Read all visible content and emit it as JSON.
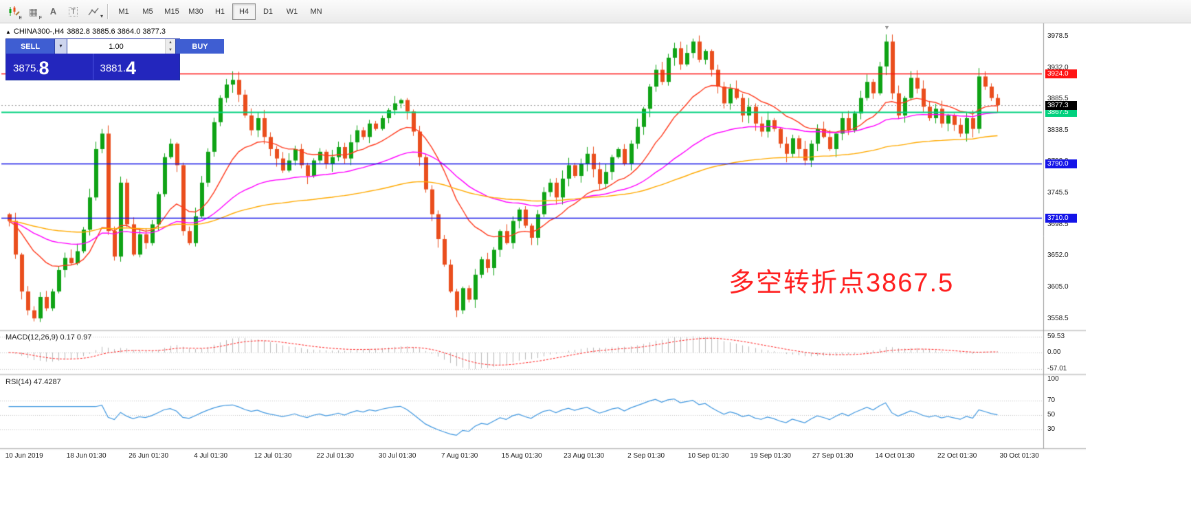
{
  "toolbar": {
    "icons": [
      {
        "name": "candlestick-chart-icon",
        "sub": "E"
      },
      {
        "name": "grid-icon",
        "glyph": "▦",
        "sub": "F"
      },
      {
        "name": "text-letter-icon",
        "glyph": "A"
      },
      {
        "name": "text-box-icon",
        "glyph": "T"
      },
      {
        "name": "line-studies-icon",
        "caret": "▾"
      }
    ],
    "timeframes": [
      "M1",
      "M5",
      "M15",
      "M30",
      "H1",
      "H4",
      "D1",
      "W1",
      "MN"
    ],
    "active_timeframe": "H4"
  },
  "chart_header": {
    "arrow_icon": "▲",
    "symbol": "CHINA300-,H4",
    "ohlc": "3882.8 3885.6 3864.0 3877.3"
  },
  "trade_panel": {
    "sell_label": "SELL",
    "buy_label": "BUY",
    "volume": "1.00",
    "caret_icon": "▼",
    "spin_up": "▲",
    "spin_down": "▼",
    "sell_price_main": "3875.",
    "sell_price_big": "8",
    "buy_price_main": "3881.",
    "buy_price_big": "4"
  },
  "chart_data": {
    "type": "candlestick",
    "symbol": "CHINA300-",
    "timeframe": "H4",
    "shift_marker_icon": "▼",
    "y_range": [
      3545,
      3995
    ],
    "y_ticks": [
      "3978.5",
      "3932.0",
      "3885.5",
      "3838.5",
      "3792.0",
      "3745.5",
      "3698.5",
      "3652.0",
      "3605.0",
      "3558.5"
    ],
    "x_labels": [
      "10 Jun 2019",
      "18 Jun 01:30",
      "26 Jun 01:30",
      "4 Jul 01:30",
      "12 Jul 01:30",
      "22 Jul 01:30",
      "30 Jul 01:30",
      "7 Aug 01:30",
      "15 Aug 01:30",
      "23 Aug 01:30",
      "2 Sep 01:30",
      "10 Sep 01:30",
      "19 Sep 01:30",
      "27 Sep 01:30",
      "14 Oct 01:30",
      "22 Oct 01:30",
      "30 Oct 01:30"
    ],
    "closes": [
      3705,
      3655,
      3600,
      3572,
      3560,
      3592,
      3575,
      3600,
      3632,
      3650,
      3642,
      3660,
      3692,
      3740,
      3812,
      3835,
      3690,
      3652,
      3762,
      3700,
      3655,
      3685,
      3672,
      3700,
      3745,
      3800,
      3820,
      3788,
      3690,
      3672,
      3712,
      3762,
      3808,
      3852,
      3888,
      3908,
      3915,
      3893,
      3862,
      3840,
      3858,
      3830,
      3812,
      3798,
      3780,
      3795,
      3812,
      3788,
      3772,
      3795,
      3808,
      3790,
      3800,
      3815,
      3798,
      3822,
      3840,
      3830,
      3850,
      3842,
      3858,
      3870,
      3880,
      3885,
      3868,
      3838,
      3800,
      3752,
      3715,
      3678,
      3640,
      3600,
      3572,
      3605,
      3588,
      3625,
      3648,
      3635,
      3662,
      3690,
      3672,
      3705,
      3722,
      3698,
      3680,
      3715,
      3748,
      3762,
      3740,
      3768,
      3788,
      3772,
      3790,
      3805,
      3782,
      3760,
      3778,
      3800,
      3812,
      3790,
      3820,
      3845,
      3872,
      3905,
      3930,
      3912,
      3948,
      3962,
      3938,
      3955,
      3972,
      3945,
      3958,
      3930,
      3905,
      3880,
      3902,
      3888,
      3862,
      3875,
      3850,
      3838,
      3855,
      3842,
      3820,
      3805,
      3828,
      3812,
      3795,
      3820,
      3842,
      3830,
      3812,
      3835,
      3858,
      3840,
      3865,
      3888,
      3912,
      3895,
      3935,
      3972,
      3895,
      3862,
      3888,
      3918,
      3902,
      3875,
      3858,
      3872,
      3850,
      3862,
      3848,
      3835,
      3858,
      3842,
      3920,
      3905,
      3888,
      3877.3
    ],
    "candle_up_color": "#0fa315",
    "candle_down_color": "#ea4e1d",
    "moving_averages": [
      {
        "name": "fast-ma",
        "period": 16,
        "color": "#ff3b1e"
      },
      {
        "name": "medium-ma",
        "period": 45,
        "color": "#ff00ff"
      },
      {
        "name": "slow-ma",
        "period": 110,
        "color": "#ffaa00"
      }
    ],
    "hlines": [
      {
        "price": 3924.0,
        "label": "3924.0",
        "color": "#ff1414",
        "width": 1.6
      },
      {
        "price": 3867.5,
        "label": "3867.5",
        "color": "#00d17e",
        "width": 2
      },
      {
        "price": 3790.0,
        "label": "3790.0",
        "color": "#1414e8",
        "width": 1.6
      },
      {
        "price": 3710.0,
        "label": "3710.0",
        "color": "#1414e8",
        "width": 1.6
      }
    ],
    "current_price": {
      "price": 3877.3,
      "label": "3877.3",
      "bg": "#000000"
    },
    "annotation": {
      "text": "多空转折点3867.5",
      "color": "#ff1f1f"
    },
    "macd": {
      "title": "MACD(12,26,9) 0.17 0.97",
      "fast": 12,
      "slow": 26,
      "signal": 9,
      "ticks": [
        "59.53",
        "0.00",
        "-57.01"
      ],
      "histogram_color": "#b9b9b9",
      "signal_color": "#ff2020"
    },
    "rsi": {
      "title": "RSI(14) 47.4287",
      "period": 14,
      "ticks": [
        "100",
        "70",
        "50",
        "30"
      ],
      "levels": [
        70,
        50,
        30
      ],
      "color": "#3f97e0"
    }
  }
}
